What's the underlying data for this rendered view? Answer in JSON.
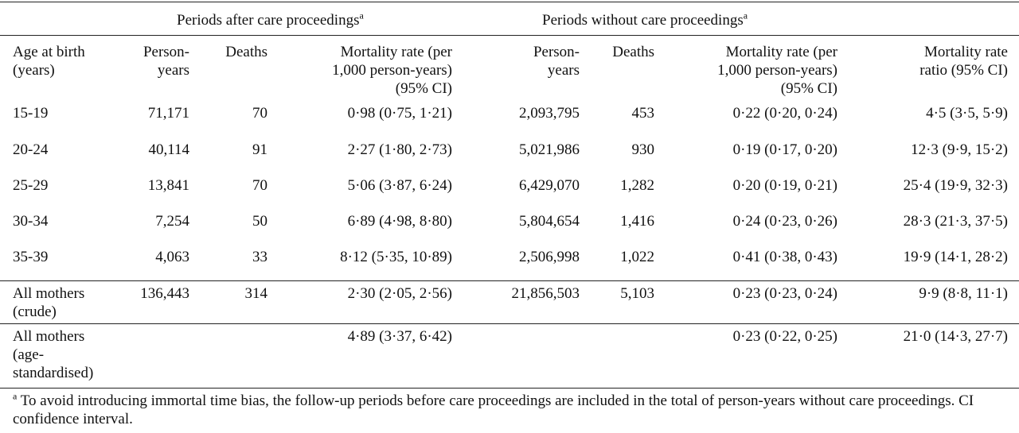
{
  "groups": {
    "after": "Periods after care proceedings",
    "without": "Periods without care proceedings",
    "marker": "a"
  },
  "headers": {
    "age": [
      "Age at birth",
      "(years)"
    ],
    "py": [
      "Person-",
      "years"
    ],
    "deaths": "Deaths",
    "rate": [
      "Mortality rate (per",
      "1,000 person-years)",
      "(95% CI)"
    ],
    "py2": [
      "Person-",
      "years"
    ],
    "deaths2": "Deaths",
    "rate2": [
      "Mortality rate (per",
      "1,000 person-years)",
      "(95% CI)"
    ],
    "ratio": [
      "Mortality rate",
      "ratio (95% CI)"
    ]
  },
  "rows": [
    {
      "age": "15-19",
      "py": "71,171",
      "deaths": "70",
      "rate": "0·98 (0·75, 1·21)",
      "py2": "2,093,795",
      "deaths2": "453",
      "rate2": "0·22 (0·20, 0·24)",
      "ratio": "4·5 (3·5, 5·9)"
    },
    {
      "age": "20-24",
      "py": "40,114",
      "deaths": "91",
      "rate": "2·27 (1·80, 2·73)",
      "py2": "5,021,986",
      "deaths2": "930",
      "rate2": "0·19 (0·17, 0·20)",
      "ratio": "12·3 (9·9, 15·2)"
    },
    {
      "age": "25-29",
      "py": "13,841",
      "deaths": "70",
      "rate": "5·06 (3·87, 6·24)",
      "py2": "6,429,070",
      "deaths2": "1,282",
      "rate2": "0·20 (0·19, 0·21)",
      "ratio": "25·4 (19·9, 32·3)"
    },
    {
      "age": "30-34",
      "py": "7,254",
      "deaths": "50",
      "rate": "6·89 (4·98, 8·80)",
      "py2": "5,804,654",
      "deaths2": "1,416",
      "rate2": "0·24 (0·23, 0·26)",
      "ratio": "28·3 (21·3, 37·5)"
    },
    {
      "age": "35-39",
      "py": "4,063",
      "deaths": "33",
      "rate": "8·12 (5·35, 10·89)",
      "py2": "2,506,998",
      "deaths2": "1,022",
      "rate2": "0·41 (0·38, 0·43)",
      "ratio": "19·9 (14·1, 28·2)"
    }
  ],
  "crude": {
    "age": [
      "All mothers",
      "(crude)"
    ],
    "py": "136,443",
    "deaths": "314",
    "rate": "2·30 (2·05, 2·56)",
    "py2": "21,856,503",
    "deaths2": "5,103",
    "rate2": "0·23 (0·23, 0·24)",
    "ratio": "9·9 (8·8, 11·1)"
  },
  "standardised": {
    "age": [
      "All mothers",
      "(age-",
      "standardised)"
    ],
    "rate": "4·89 (3·37, 6·42)",
    "rate2": "0·23 (0·22, 0·25)",
    "ratio": "21·0 (14·3, 27·7)"
  },
  "footnote": {
    "marker": "a",
    "text": " To avoid introducing immortal time bias, the follow-up periods before care proceedings are included in the total of person-years without care proceedings. CI confidence interval."
  }
}
